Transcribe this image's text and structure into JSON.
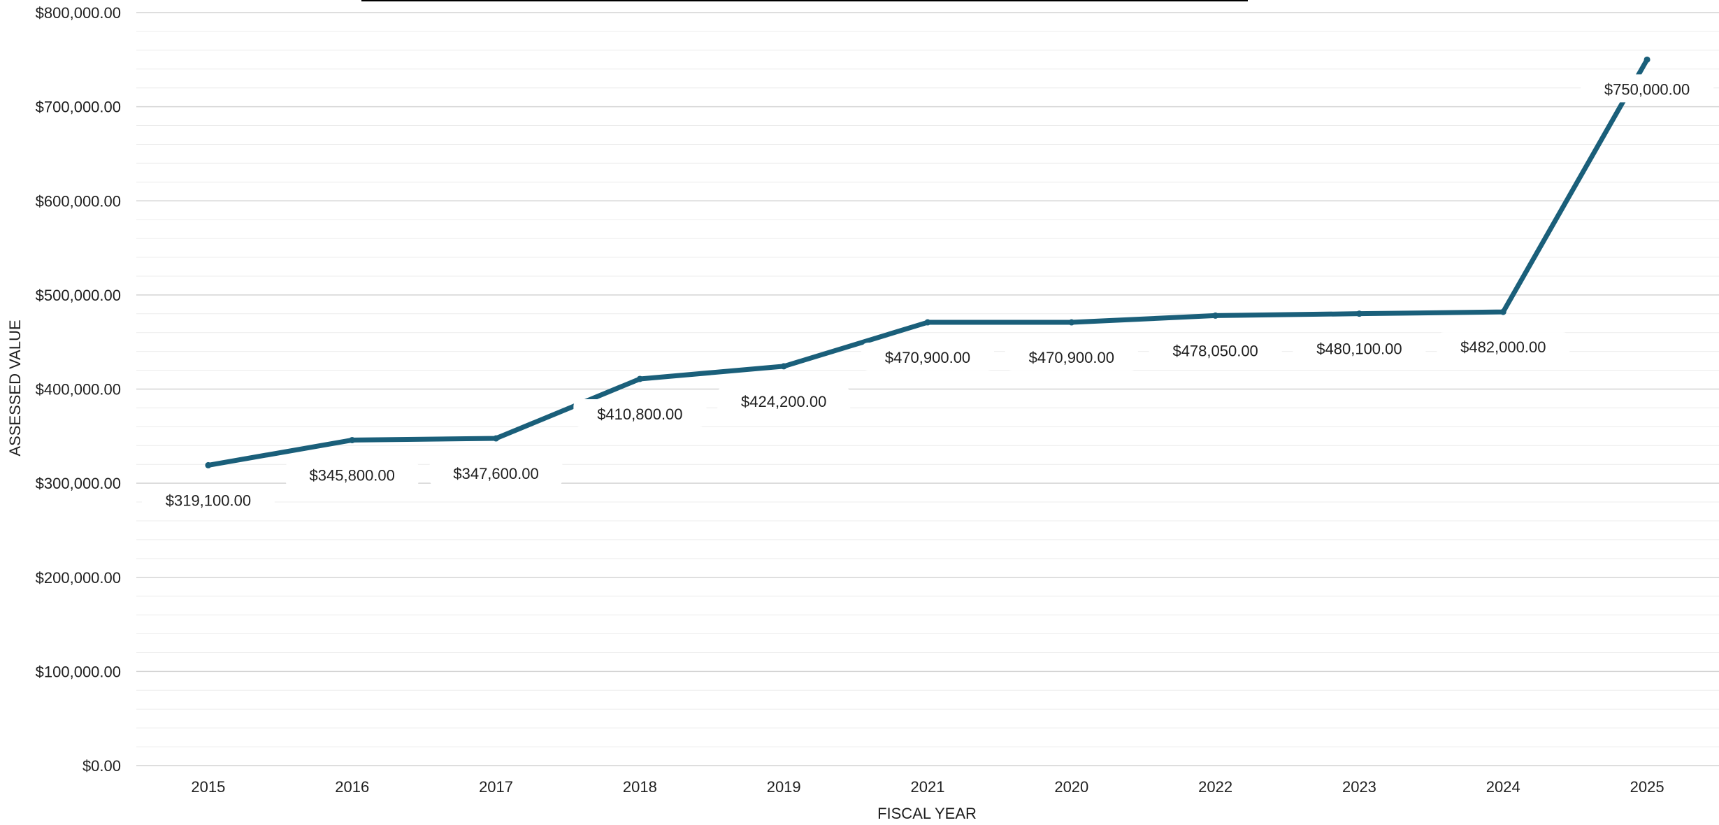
{
  "chart_data": {
    "type": "line",
    "title": "",
    "xlabel": "FISCAL YEAR",
    "ylabel": "ASSESSED VALUE",
    "ylim": [
      0,
      800000
    ],
    "y_ticks": [
      {
        "value": 0,
        "label": "$0.00"
      },
      {
        "value": 100000,
        "label": "$100,000.00"
      },
      {
        "value": 200000,
        "label": "$200,000.00"
      },
      {
        "value": 300000,
        "label": "$300,000.00"
      },
      {
        "value": 400000,
        "label": "$400,000.00"
      },
      {
        "value": 500000,
        "label": "$500,000.00"
      },
      {
        "value": 600000,
        "label": "$600,000.00"
      },
      {
        "value": 700000,
        "label": "$700,000.00"
      },
      {
        "value": 800000,
        "label": "$800,000.00"
      }
    ],
    "categories": [
      "2015",
      "2016",
      "2017",
      "2018",
      "2019",
      "2021",
      "2020",
      "2022",
      "2023",
      "2024",
      "2025"
    ],
    "series": [
      {
        "values": [
          319100,
          345800,
          347600,
          410800,
          424200,
          470900,
          470900,
          478050,
          480100,
          482000,
          750000
        ],
        "data_labels": [
          "$319,100.00",
          "$345,800.00",
          "$347,600.00",
          "$410,800.00",
          "$424,200.00",
          "$470,900.00",
          "$470,900.00",
          "$478,050.00",
          "$480,100.00",
          "$482,000.00",
          "$750,000.00"
        ],
        "color": "#1a5f7a"
      }
    ],
    "grid": true,
    "minor_grid": true,
    "legend": "none",
    "colors": {
      "line": "#1a5f7a",
      "major_grid": "#d4d4d4",
      "minor_grid": "#ececec",
      "text": "#1f1f1f"
    }
  }
}
